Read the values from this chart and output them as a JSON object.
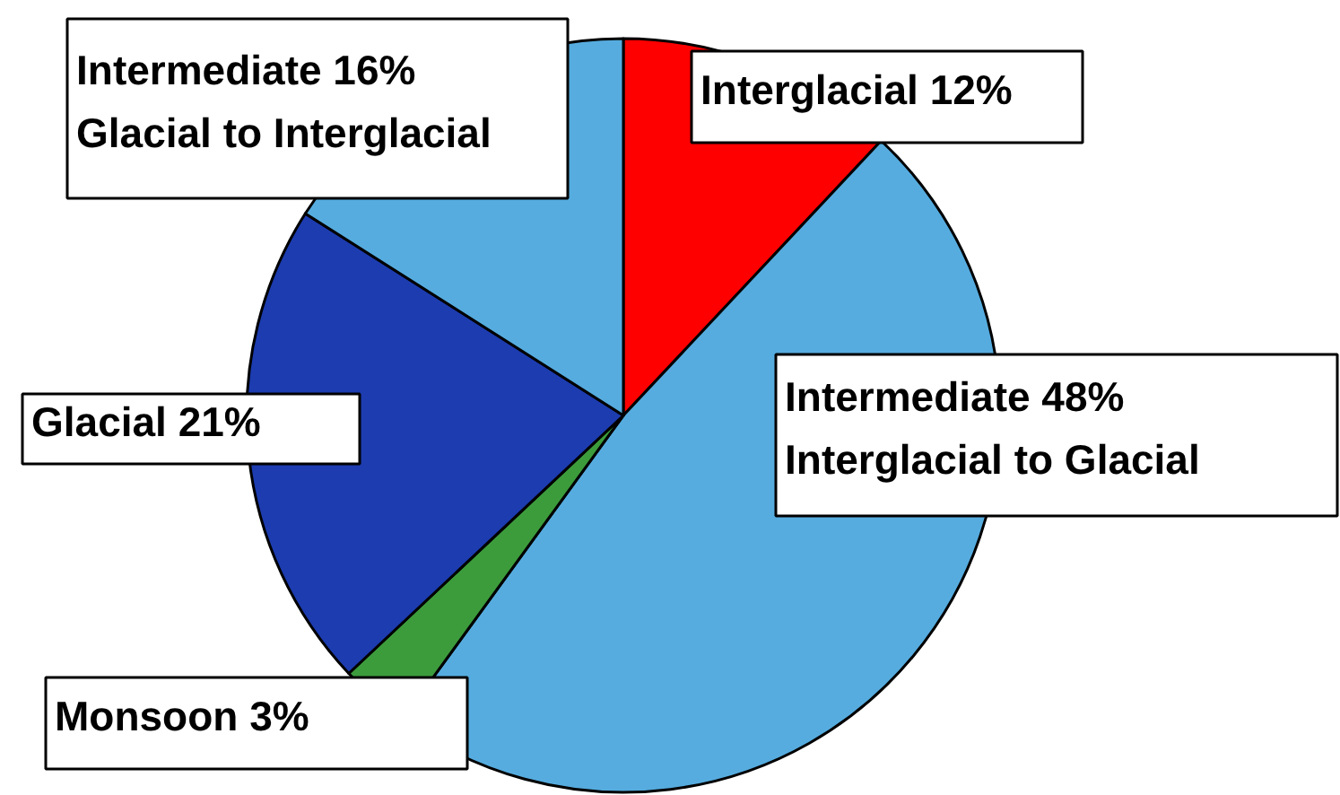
{
  "chart_data": {
    "type": "pie",
    "categories": [
      "Interglacial 12%",
      "Intermediate 48%\nInterglacial to Glacial",
      "Monsoon 3%",
      "Glacial 21%",
      "Intermediate  16%\nGlacial to Interglacial"
    ],
    "values": [
      12,
      48,
      3,
      21,
      16
    ],
    "colors": [
      "#ff0000",
      "#56acdf",
      "#3c9c3c",
      "#1c3cb0",
      "#56acdf"
    ]
  }
}
